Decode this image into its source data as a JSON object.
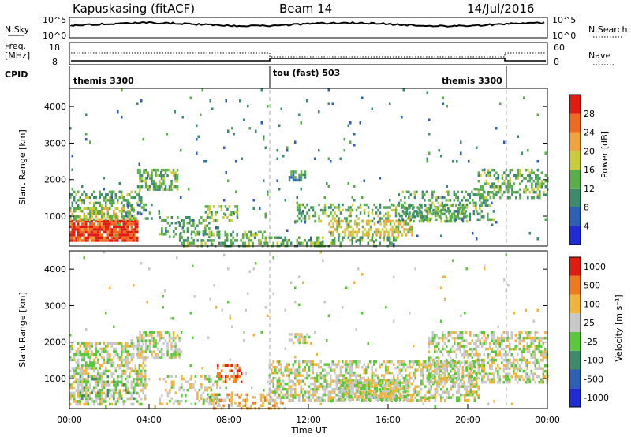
{
  "header": {
    "station": "Kapuskasing (fitACF)",
    "beam": "Beam 14",
    "date": "14/Jul/2016"
  },
  "strip_panels": {
    "nsky_label": "N.Sky",
    "nsky_ticks": [
      "10^5",
      "10^0"
    ],
    "nsearch_label": "N.Search",
    "nsearch_ticks": [
      "10^5",
      "10^0"
    ],
    "freq_label": "Freq.",
    "freq_unit": "[MHz]",
    "freq_ticks": [
      "18",
      "8"
    ],
    "nave_label": "Nave",
    "nave_ticks": [
      "60",
      "0"
    ],
    "cpid_label": "CPID",
    "cpid_segments": [
      {
        "name": "themis 3300",
        "start_h": 0,
        "end_h": 10
      },
      {
        "name": "tou (fast) 503",
        "start_h": 10,
        "end_h": 22
      },
      {
        "name": "themis 3300",
        "start_h": 22,
        "end_h": 24
      }
    ]
  },
  "xaxis": {
    "label": "Time UT",
    "ticks": [
      "00:00",
      "04:00",
      "08:00",
      "12:00",
      "16:00",
      "20:00",
      "00:00"
    ]
  },
  "chart_data": [
    {
      "type": "heatmap",
      "panel": "power",
      "xlim": [
        0,
        24
      ],
      "ylim": [
        180,
        4500
      ],
      "ylabel": "Slant Range [km]",
      "yticks": [
        "1000",
        "2000",
        "3000",
        "4000"
      ],
      "colorbar_label": "Power [dB]",
      "colorbar_ticks": [
        "4",
        "8",
        "12",
        "16",
        "20",
        "24",
        "28"
      ],
      "colors": [
        "#1e2bd6",
        "#2f5fb4",
        "#3d8a6c",
        "#5aae4a",
        "#c8cc3a",
        "#f0a33a",
        "#ef6a1e",
        "#e01b10"
      ],
      "regions": [
        {
          "t0": 0.0,
          "t1": 3.4,
          "r0": 300,
          "r1": 900,
          "v": 6.5,
          "d": 0.9
        },
        {
          "t0": 0.0,
          "t1": 3.2,
          "r0": 900,
          "r1": 1250,
          "v": 3.8,
          "d": 0.6
        },
        {
          "t0": 0.1,
          "t1": 3.6,
          "r0": 1250,
          "r1": 1700,
          "v": 2.8,
          "d": 0.45
        },
        {
          "t0": 3.4,
          "t1": 5.4,
          "r0": 1700,
          "r1": 2300,
          "v": 3.0,
          "d": 0.5
        },
        {
          "t0": 2.8,
          "t1": 4.2,
          "r0": 900,
          "r1": 1350,
          "v": 2.5,
          "d": 0.35
        },
        {
          "t0": 4.5,
          "t1": 7.0,
          "r0": 400,
          "r1": 1000,
          "v": 2.5,
          "d": 0.3
        },
        {
          "t0": 6.8,
          "t1": 8.4,
          "r0": 900,
          "r1": 1300,
          "v": 3.2,
          "d": 0.4
        },
        {
          "t0": 5.5,
          "t1": 9.8,
          "r0": 200,
          "r1": 600,
          "v": 3.0,
          "d": 0.45
        },
        {
          "t0": 9.8,
          "t1": 16.5,
          "r0": 200,
          "r1": 450,
          "v": 2.8,
          "d": 0.4
        },
        {
          "t0": 11.3,
          "t1": 20.0,
          "r0": 850,
          "r1": 1350,
          "v": 2.8,
          "d": 0.4
        },
        {
          "t0": 13.0,
          "t1": 17.2,
          "r0": 450,
          "r1": 900,
          "v": 4.2,
          "d": 0.55
        },
        {
          "t0": 16.5,
          "t1": 21.3,
          "r0": 900,
          "r1": 1700,
          "v": 2.6,
          "d": 0.35
        },
        {
          "t0": 20.5,
          "t1": 24.0,
          "r0": 1500,
          "r1": 2300,
          "v": 3.0,
          "d": 0.45
        },
        {
          "t0": 11.0,
          "t1": 11.8,
          "r0": 1950,
          "r1": 2250,
          "v": 2.0,
          "d": 0.5
        },
        {
          "t0": 0.0,
          "t1": 24.0,
          "r0": 200,
          "r1": 4500,
          "v": 2.0,
          "d": 0.015
        }
      ]
    },
    {
      "type": "heatmap",
      "panel": "velocity",
      "xlim": [
        0,
        24
      ],
      "ylim": [
        180,
        4500
      ],
      "ylabel": "Slant Range [km]",
      "yticks": [
        "1000",
        "2000",
        "3000",
        "4000"
      ],
      "colorbar_label": "Velocity [m s⁻¹]",
      "colorbar_ticks": [
        "1000",
        "500",
        "100",
        "25",
        "-25",
        "-100",
        "-500",
        "-1000"
      ],
      "colors": [
        "#1e2bd6",
        "#2f5fb4",
        "#3d8a6c",
        "#5ac83a",
        "#c8c8c8",
        "#f0b43a",
        "#ef7a1e",
        "#e01b10"
      ],
      "regions": [
        {
          "t0": 0.0,
          "t1": 3.8,
          "r0": 300,
          "r1": 2000,
          "v": 4,
          "d": 0.55
        },
        {
          "t0": 0.5,
          "t1": 3.2,
          "r0": 450,
          "r1": 1100,
          "v": 3,
          "d": 0.35
        },
        {
          "t0": 3.4,
          "t1": 5.6,
          "r0": 1600,
          "r1": 2300,
          "v": 4,
          "d": 0.5
        },
        {
          "t0": 4.5,
          "t1": 7.5,
          "r0": 300,
          "r1": 1100,
          "v": 4,
          "d": 0.3
        },
        {
          "t0": 6.5,
          "t1": 7.6,
          "r0": 300,
          "r1": 600,
          "v": 3,
          "d": 0.35
        },
        {
          "t0": 7.4,
          "t1": 8.6,
          "r0": 900,
          "r1": 1400,
          "v": 6,
          "d": 0.4
        },
        {
          "t0": 7.0,
          "t1": 10.8,
          "r0": 200,
          "r1": 600,
          "v": 5,
          "d": 0.35
        },
        {
          "t0": 10.0,
          "t1": 20.5,
          "r0": 400,
          "r1": 1500,
          "v": 4,
          "d": 0.55
        },
        {
          "t0": 13.5,
          "t1": 17.0,
          "r0": 450,
          "r1": 1000,
          "v": 4,
          "d": 0.75
        },
        {
          "t0": 18.0,
          "t1": 24.0,
          "r0": 900,
          "r1": 2300,
          "v": 4,
          "d": 0.5
        },
        {
          "t0": 11.0,
          "t1": 12.0,
          "r0": 1950,
          "r1": 2250,
          "v": 4,
          "d": 0.6
        },
        {
          "t0": 0.0,
          "t1": 24.0,
          "r0": 200,
          "r1": 4500,
          "v": 4,
          "d": 0.012
        }
      ]
    }
  ]
}
